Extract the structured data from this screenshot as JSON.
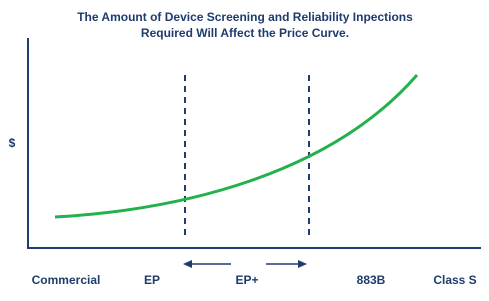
{
  "title": {
    "line1": "The Amount of Device Screening and Reliability Inpections",
    "line2": "Required Will Affect the Price Curve."
  },
  "y_axis_label": "$",
  "x_labels": [
    "Commercial",
    "EP",
    "EP+",
    "883B",
    "Class S"
  ]
}
